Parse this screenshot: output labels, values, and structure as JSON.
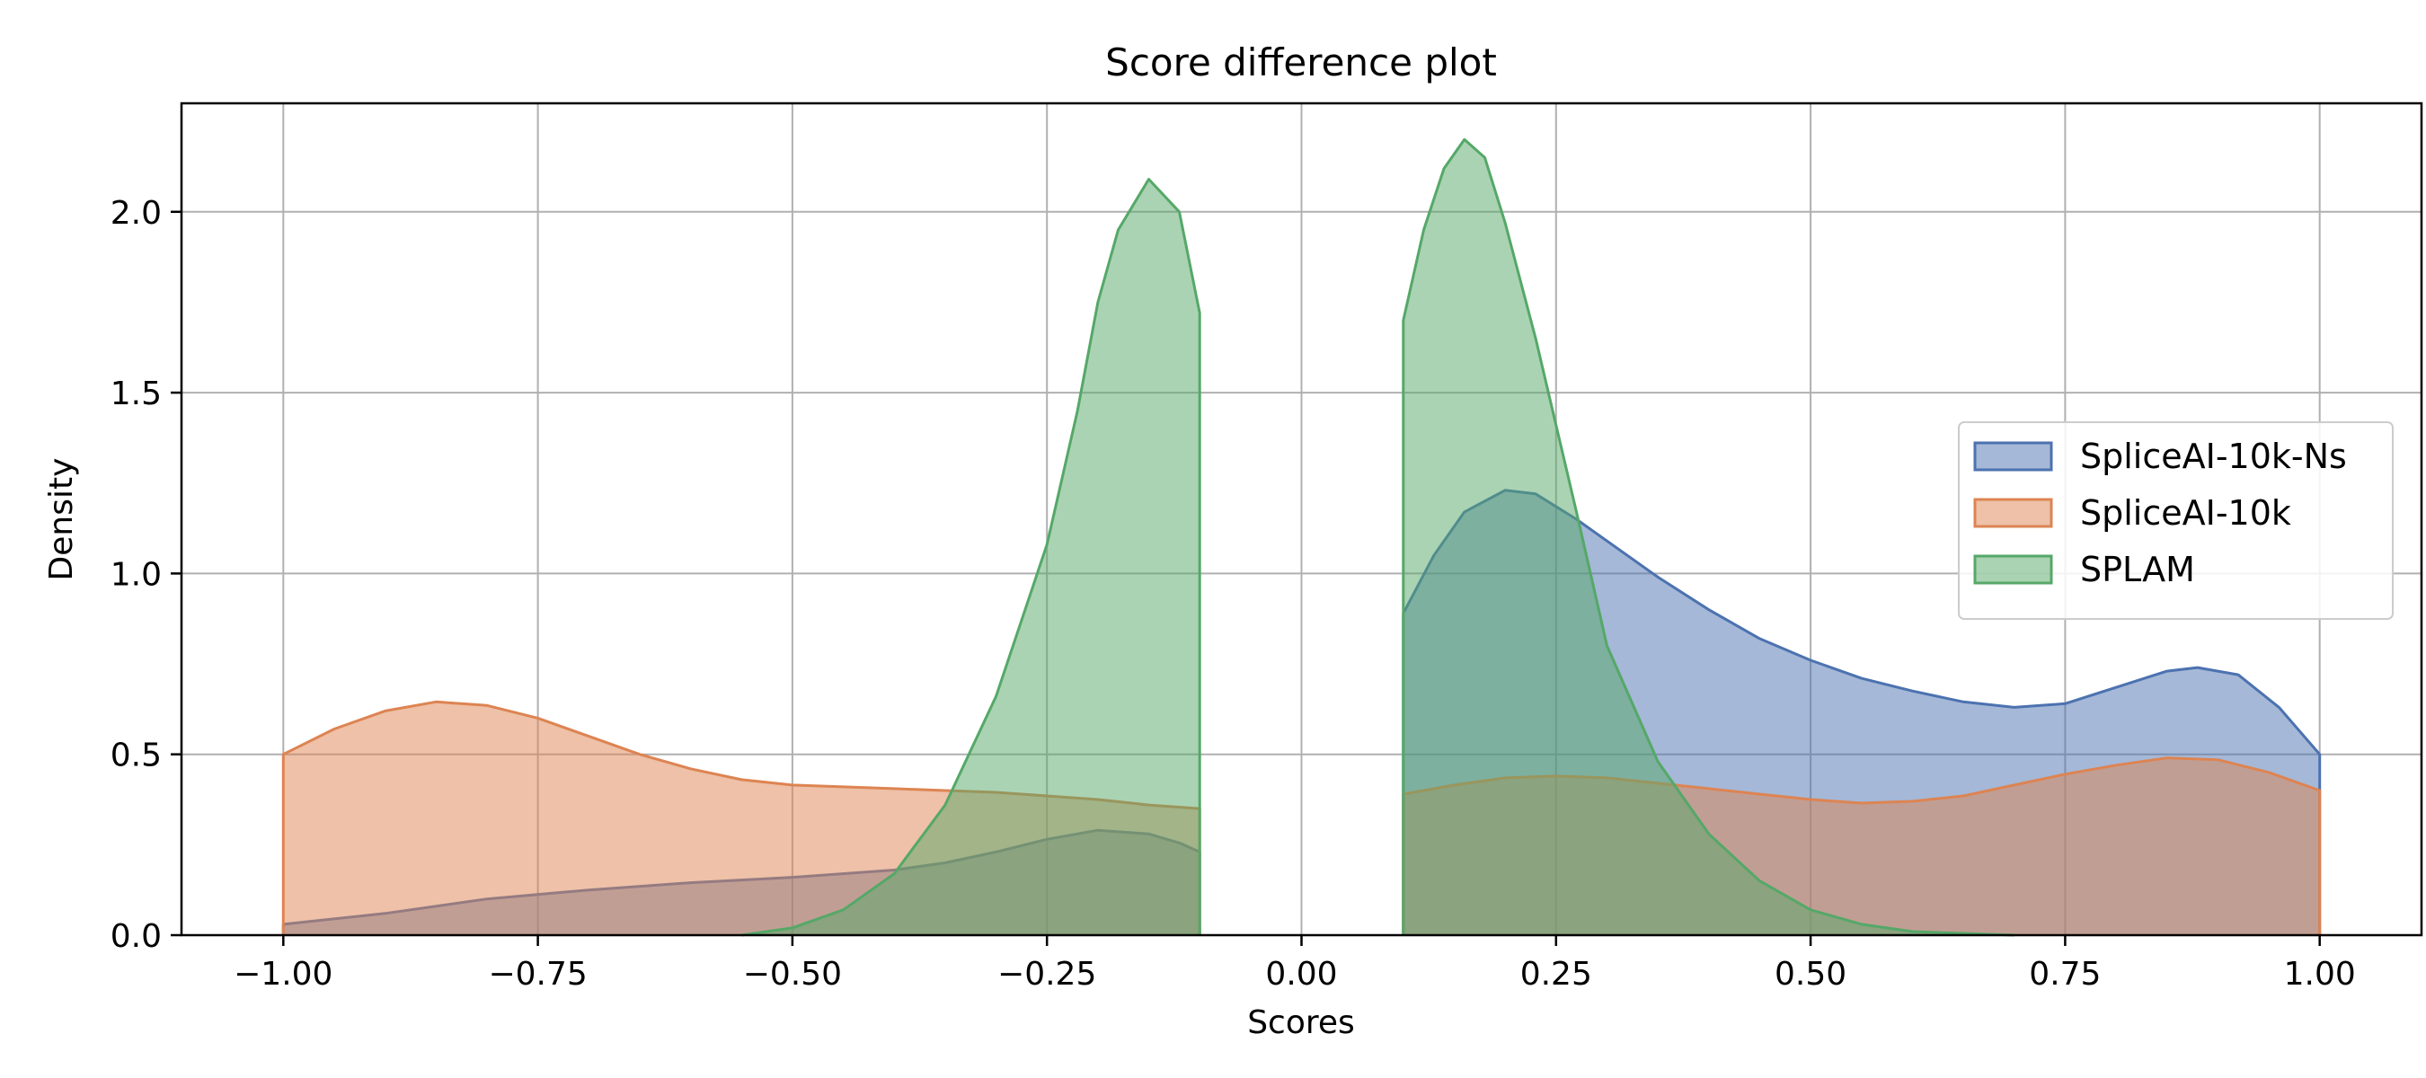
{
  "chart_data": {
    "type": "area",
    "title": "Score difference plot",
    "xlabel": "Scores",
    "ylabel": "Density",
    "xlim": [
      -1.1,
      1.1
    ],
    "ylim": [
      0,
      2.3
    ],
    "xticks": [
      -1.0,
      -0.75,
      -0.5,
      -0.25,
      0.0,
      0.25,
      0.5,
      0.75,
      1.0
    ],
    "xtick_labels": [
      "−1.00",
      "−0.75",
      "−0.50",
      "−0.25",
      "0.00",
      "0.25",
      "0.50",
      "0.75",
      "1.00"
    ],
    "yticks": [
      0.0,
      0.5,
      1.0,
      1.5,
      2.0
    ],
    "ytick_labels": [
      "0.0",
      "0.5",
      "1.0",
      "1.5",
      "2.0"
    ],
    "grid": true,
    "legend_position": "center-right",
    "series": [
      {
        "name": "SpliceAI-10k-Ns",
        "color": "#4c72b0",
        "segments": [
          [
            [
              -1.0,
              0.03
            ],
            [
              -0.9,
              0.06
            ],
            [
              -0.8,
              0.1
            ],
            [
              -0.7,
              0.125
            ],
            [
              -0.6,
              0.145
            ],
            [
              -0.5,
              0.16
            ],
            [
              -0.4,
              0.18
            ],
            [
              -0.35,
              0.2
            ],
            [
              -0.3,
              0.23
            ],
            [
              -0.25,
              0.265
            ],
            [
              -0.2,
              0.29
            ],
            [
              -0.15,
              0.28
            ],
            [
              -0.12,
              0.255
            ],
            [
              -0.1,
              0.23
            ]
          ],
          [
            [
              0.1,
              0.89
            ],
            [
              0.13,
              1.05
            ],
            [
              0.16,
              1.17
            ],
            [
              0.2,
              1.23
            ],
            [
              0.23,
              1.22
            ],
            [
              0.27,
              1.15
            ],
            [
              0.3,
              1.09
            ],
            [
              0.35,
              0.99
            ],
            [
              0.4,
              0.9
            ],
            [
              0.45,
              0.82
            ],
            [
              0.5,
              0.76
            ],
            [
              0.55,
              0.71
            ],
            [
              0.6,
              0.675
            ],
            [
              0.65,
              0.645
            ],
            [
              0.7,
              0.63
            ],
            [
              0.75,
              0.64
            ],
            [
              0.8,
              0.685
            ],
            [
              0.85,
              0.73
            ],
            [
              0.88,
              0.74
            ],
            [
              0.92,
              0.72
            ],
            [
              0.96,
              0.63
            ],
            [
              1.0,
              0.5
            ]
          ]
        ]
      },
      {
        "name": "SpliceAI-10k",
        "color": "#dd8452",
        "segments": [
          [
            [
              -1.0,
              0.5
            ],
            [
              -0.95,
              0.57
            ],
            [
              -0.9,
              0.62
            ],
            [
              -0.85,
              0.645
            ],
            [
              -0.8,
              0.635
            ],
            [
              -0.75,
              0.6
            ],
            [
              -0.7,
              0.55
            ],
            [
              -0.65,
              0.5
            ],
            [
              -0.6,
              0.46
            ],
            [
              -0.55,
              0.43
            ],
            [
              -0.5,
              0.415
            ],
            [
              -0.45,
              0.41
            ],
            [
              -0.4,
              0.405
            ],
            [
              -0.35,
              0.4
            ],
            [
              -0.3,
              0.395
            ],
            [
              -0.25,
              0.385
            ],
            [
              -0.2,
              0.375
            ],
            [
              -0.15,
              0.36
            ],
            [
              -0.1,
              0.35
            ]
          ],
          [
            [
              0.1,
              0.39
            ],
            [
              0.15,
              0.415
            ],
            [
              0.2,
              0.435
            ],
            [
              0.25,
              0.44
            ],
            [
              0.3,
              0.435
            ],
            [
              0.35,
              0.42
            ],
            [
              0.4,
              0.405
            ],
            [
              0.45,
              0.39
            ],
            [
              0.5,
              0.375
            ],
            [
              0.55,
              0.365
            ],
            [
              0.6,
              0.37
            ],
            [
              0.65,
              0.385
            ],
            [
              0.7,
              0.415
            ],
            [
              0.75,
              0.445
            ],
            [
              0.8,
              0.47
            ],
            [
              0.85,
              0.49
            ],
            [
              0.9,
              0.485
            ],
            [
              0.95,
              0.45
            ],
            [
              1.0,
              0.4
            ]
          ]
        ]
      },
      {
        "name": "SPLAM",
        "color": "#55a868",
        "segments": [
          [
            [
              -0.55,
              0.0
            ],
            [
              -0.5,
              0.02
            ],
            [
              -0.45,
              0.07
            ],
            [
              -0.4,
              0.17
            ],
            [
              -0.35,
              0.36
            ],
            [
              -0.3,
              0.66
            ],
            [
              -0.25,
              1.08
            ],
            [
              -0.22,
              1.45
            ],
            [
              -0.2,
              1.75
            ],
            [
              -0.18,
              1.95
            ],
            [
              -0.15,
              2.09
            ],
            [
              -0.12,
              2.0
            ],
            [
              -0.1,
              1.72
            ],
            [
              -0.1,
              0.0
            ]
          ],
          [
            [
              0.1,
              0.0
            ],
            [
              0.1,
              1.7
            ],
            [
              0.12,
              1.95
            ],
            [
              0.14,
              2.12
            ],
            [
              0.16,
              2.2
            ],
            [
              0.18,
              2.15
            ],
            [
              0.2,
              1.97
            ],
            [
              0.23,
              1.65
            ],
            [
              0.27,
              1.17
            ],
            [
              0.3,
              0.8
            ],
            [
              0.35,
              0.48
            ],
            [
              0.4,
              0.28
            ],
            [
              0.45,
              0.15
            ],
            [
              0.5,
              0.07
            ],
            [
              0.55,
              0.03
            ],
            [
              0.6,
              0.01
            ],
            [
              0.7,
              0.0
            ]
          ]
        ]
      }
    ]
  }
}
